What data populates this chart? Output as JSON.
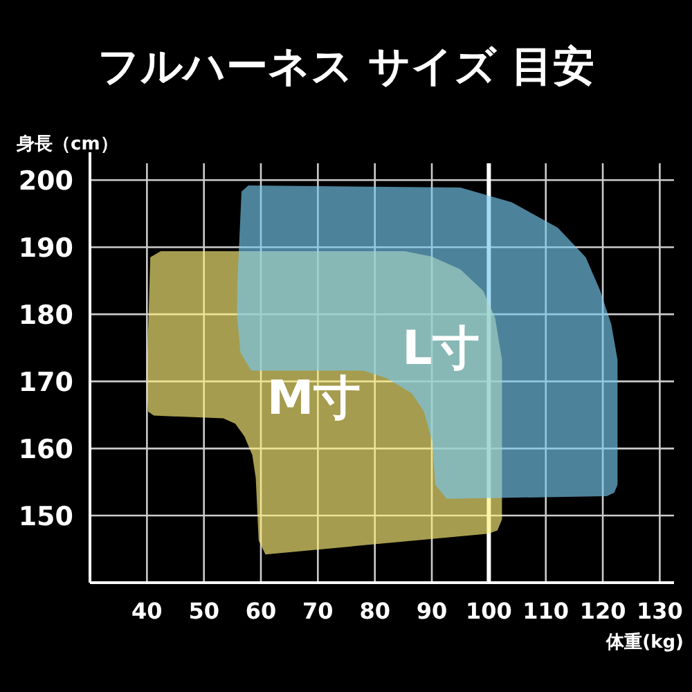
{
  "chart_data": {
    "type": "area",
    "title": "フルハーネス サイズ 目安",
    "xlabel": "体重(kg)",
    "ylabel": "身長（cm）",
    "xlim": [
      30,
      132.5
    ],
    "ylim": [
      140,
      202.5
    ],
    "xticks": [
      40,
      50,
      60,
      70,
      80,
      90,
      100,
      110,
      120,
      130
    ],
    "yticks": [
      150,
      160,
      170,
      180,
      190,
      200
    ],
    "grid": true,
    "ref_lines": [
      {
        "axis": "x",
        "value": 100,
        "color": "#ffffff"
      }
    ],
    "series": [
      {
        "color": "#fdf07a",
        "x": [
          40,
          40.6,
          42.4,
          85.2,
          90,
          95,
          99,
          101.1,
          102.3,
          102.3,
          101.5,
          99.9,
          60.8,
          59.6,
          59.1,
          58.5,
          57.1,
          55.5,
          53.4,
          41.2,
          40.2,
          40
        ],
        "values": [
          172,
          188.5,
          189.4,
          189.4,
          188.6,
          186.7,
          183.5,
          179.5,
          173.2,
          149.4,
          147.8,
          147.3,
          144.2,
          146.3,
          155.6,
          159,
          161.8,
          163.7,
          164.5,
          164.9,
          165.5,
          168
        ]
      },
      {
        "color": "#76c8ee",
        "x": [
          55.9,
          56.6,
          57.8,
          95,
          104,
          112.1,
          117,
          119.5,
          121.5,
          122.6,
          122.6,
          122,
          120.7,
          92.6,
          90.6,
          90.1,
          88.6,
          86.5,
          82,
          77.9,
          58.3,
          56.4,
          55.8
        ],
        "values": [
          185,
          198.3,
          199.2,
          198.9,
          196.7,
          192.9,
          188.5,
          183.6,
          178.5,
          173.2,
          154.6,
          153.4,
          152.9,
          152.5,
          154.6,
          161,
          165.5,
          168.2,
          170.5,
          171.6,
          171.6,
          174.3,
          180
        ]
      }
    ],
    "annotations": [
      "M寸",
      "L寸"
    ]
  }
}
